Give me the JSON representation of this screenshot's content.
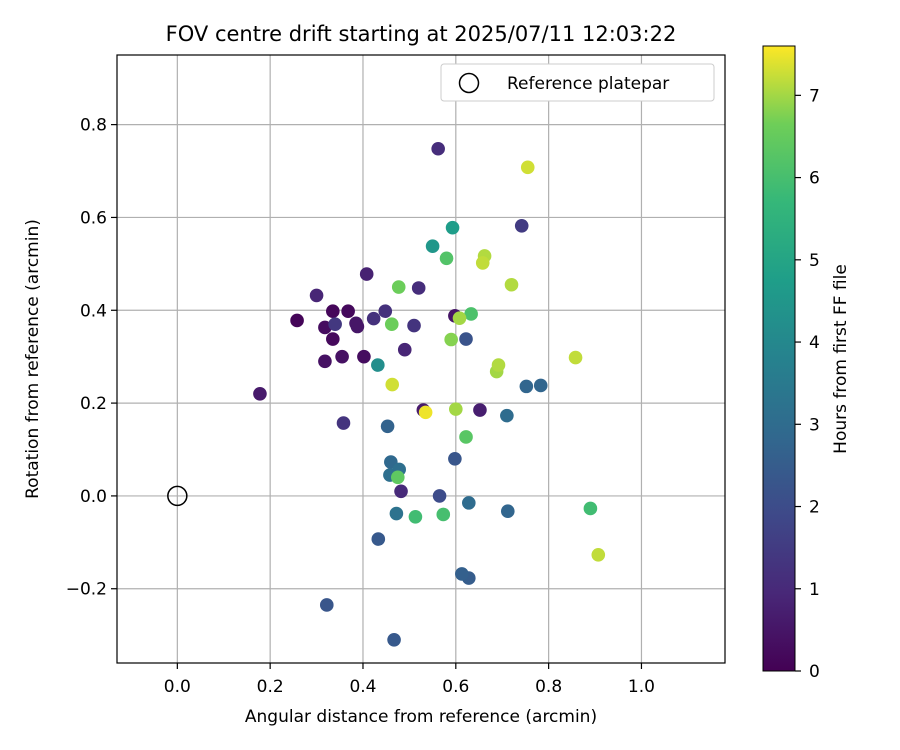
{
  "chart_data": {
    "type": "scatter",
    "title": "FOV centre drift starting at 2025/07/11 12:03:22",
    "xlabel": "Angular distance from reference (arcmin)",
    "ylabel": "Rotation from reference (arcmin)",
    "xlim": [
      -0.13,
      1.18
    ],
    "ylim": [
      -0.36,
      0.95
    ],
    "xticks": [
      0.0,
      0.2,
      0.4,
      0.6,
      0.8,
      1.0
    ],
    "xtick_labels": [
      "0.0",
      "0.2",
      "0.4",
      "0.6",
      "0.8",
      "1.0"
    ],
    "yticks": [
      -0.2,
      0.0,
      0.2,
      0.4,
      0.6,
      0.8
    ],
    "ytick_labels": [
      "−0.2",
      "0.0",
      "0.2",
      "0.4",
      "0.6",
      "0.8"
    ],
    "grid": true,
    "colormap": "viridis",
    "colorbar": {
      "label": "Hours from first FF file",
      "range": [
        0,
        7.6
      ],
      "ticks": [
        0,
        1,
        2,
        3,
        4,
        5,
        6,
        7
      ],
      "tick_labels": [
        "0",
        "1",
        "2",
        "3",
        "4",
        "5",
        "6",
        "7"
      ]
    },
    "legend": {
      "position": "top-right",
      "entries": [
        {
          "label": "Reference platepar",
          "marker": "open-circle",
          "color": "#000000"
        }
      ]
    },
    "reference_point": {
      "x": 0.0,
      "y": 0.0
    },
    "points": [
      {
        "x": 0.258,
        "y": 0.378,
        "hours": 0.1
      },
      {
        "x": 0.335,
        "y": 0.398,
        "hours": 0.15
      },
      {
        "x": 0.368,
        "y": 0.398,
        "hours": 0.2
      },
      {
        "x": 0.335,
        "y": 0.338,
        "hours": 0.2
      },
      {
        "x": 0.318,
        "y": 0.363,
        "hours": 0.3
      },
      {
        "x": 0.402,
        "y": 0.3,
        "hours": 0.3
      },
      {
        "x": 0.355,
        "y": 0.3,
        "hours": 0.4
      },
      {
        "x": 0.318,
        "y": 0.29,
        "hours": 0.4
      },
      {
        "x": 0.388,
        "y": 0.365,
        "hours": 0.5
      },
      {
        "x": 0.385,
        "y": 0.372,
        "hours": 0.5
      },
      {
        "x": 0.178,
        "y": 0.22,
        "hours": 0.6
      },
      {
        "x": 0.598,
        "y": 0.388,
        "hours": 0.5
      },
      {
        "x": 0.53,
        "y": 0.185,
        "hours": 0.6
      },
      {
        "x": 0.652,
        "y": 0.185,
        "hours": 0.7
      },
      {
        "x": 0.408,
        "y": 0.478,
        "hours": 0.8
      },
      {
        "x": 0.3,
        "y": 0.432,
        "hours": 0.9
      },
      {
        "x": 0.49,
        "y": 0.315,
        "hours": 0.9
      },
      {
        "x": 0.482,
        "y": 0.01,
        "hours": 1.0
      },
      {
        "x": 0.562,
        "y": 0.748,
        "hours": 1.1
      },
      {
        "x": 0.52,
        "y": 0.448,
        "hours": 1.1
      },
      {
        "x": 0.423,
        "y": 0.382,
        "hours": 1.2
      },
      {
        "x": 0.448,
        "y": 0.398,
        "hours": 1.2
      },
      {
        "x": 0.358,
        "y": 0.157,
        "hours": 1.3
      },
      {
        "x": 0.51,
        "y": 0.367,
        "hours": 1.3
      },
      {
        "x": 0.34,
        "y": 0.37,
        "hours": 1.4
      },
      {
        "x": 0.742,
        "y": 0.582,
        "hours": 1.5
      },
      {
        "x": 0.565,
        "y": 0.0,
        "hours": 2.0
      },
      {
        "x": 0.622,
        "y": 0.338,
        "hours": 2.2
      },
      {
        "x": 0.598,
        "y": 0.08,
        "hours": 2.3
      },
      {
        "x": 0.322,
        "y": -0.235,
        "hours": 2.3
      },
      {
        "x": 0.433,
        "y": -0.093,
        "hours": 2.4
      },
      {
        "x": 0.467,
        "y": -0.31,
        "hours": 2.4
      },
      {
        "x": 0.628,
        "y": -0.177,
        "hours": 2.5
      },
      {
        "x": 0.613,
        "y": -0.168,
        "hours": 2.6
      },
      {
        "x": 0.453,
        "y": 0.15,
        "hours": 2.7
      },
      {
        "x": 0.752,
        "y": 0.236,
        "hours": 2.8
      },
      {
        "x": 0.783,
        "y": 0.238,
        "hours": 2.8
      },
      {
        "x": 0.712,
        "y": -0.033,
        "hours": 2.8
      },
      {
        "x": 0.46,
        "y": 0.073,
        "hours": 2.9
      },
      {
        "x": 0.71,
        "y": 0.173,
        "hours": 3.0
      },
      {
        "x": 0.628,
        "y": -0.015,
        "hours": 3.0
      },
      {
        "x": 0.458,
        "y": 0.045,
        "hours": 3.1
      },
      {
        "x": 0.478,
        "y": 0.057,
        "hours": 3.1
      },
      {
        "x": 0.472,
        "y": -0.038,
        "hours": 3.2
      },
      {
        "x": 0.432,
        "y": 0.282,
        "hours": 4.2
      },
      {
        "x": 0.55,
        "y": 0.538,
        "hours": 4.5
      },
      {
        "x": 0.593,
        "y": 0.578,
        "hours": 4.7
      },
      {
        "x": 0.89,
        "y": -0.027,
        "hours": 5.9
      },
      {
        "x": 0.513,
        "y": -0.045,
        "hours": 5.9
      },
      {
        "x": 0.573,
        "y": -0.04,
        "hours": 6.0
      },
      {
        "x": 0.633,
        "y": 0.392,
        "hours": 6.1
      },
      {
        "x": 0.58,
        "y": 0.512,
        "hours": 6.2
      },
      {
        "x": 0.622,
        "y": 0.127,
        "hours": 6.3
      },
      {
        "x": 0.475,
        "y": 0.04,
        "hours": 6.4
      },
      {
        "x": 0.462,
        "y": 0.37,
        "hours": 6.6
      },
      {
        "x": 0.477,
        "y": 0.45,
        "hours": 6.6
      },
      {
        "x": 0.59,
        "y": 0.337,
        "hours": 6.8
      },
      {
        "x": 0.6,
        "y": 0.187,
        "hours": 7.0
      },
      {
        "x": 0.608,
        "y": 0.383,
        "hours": 7.0
      },
      {
        "x": 0.688,
        "y": 0.268,
        "hours": 7.0
      },
      {
        "x": 0.692,
        "y": 0.282,
        "hours": 7.1
      },
      {
        "x": 0.72,
        "y": 0.455,
        "hours": 7.1
      },
      {
        "x": 0.662,
        "y": 0.517,
        "hours": 7.1
      },
      {
        "x": 0.658,
        "y": 0.502,
        "hours": 7.2
      },
      {
        "x": 0.858,
        "y": 0.298,
        "hours": 7.2
      },
      {
        "x": 0.907,
        "y": -0.127,
        "hours": 7.2
      },
      {
        "x": 0.463,
        "y": 0.24,
        "hours": 7.3
      },
      {
        "x": 0.755,
        "y": 0.708,
        "hours": 7.3
      },
      {
        "x": 0.535,
        "y": 0.18,
        "hours": 7.5
      }
    ]
  }
}
